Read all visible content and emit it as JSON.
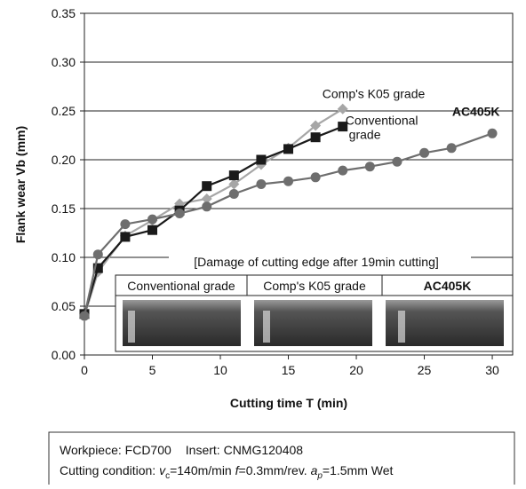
{
  "chart_data": {
    "type": "line",
    "xlabel": "Cutting time T (min)",
    "ylabel": "Flank wear Vb (mm)",
    "xlim": [
      0,
      31.5
    ],
    "xticks": [
      0,
      5,
      10,
      15,
      20,
      25,
      30
    ],
    "ylim": [
      0,
      0.35
    ],
    "yticks": [
      {
        "value": 0,
        "label": "0.00"
      },
      0.05,
      {
        "value": 0.1,
        "label": "0.10"
      },
      0.15,
      {
        "value": 0.2,
        "label": "0.20"
      },
      0.25,
      {
        "value": 0.3,
        "label": "0.30"
      },
      0.35
    ],
    "grid": true,
    "series": [
      {
        "name": "Comp's K05 grade",
        "color": "#a6a6a6",
        "marker": "diamond",
        "x": [
          0,
          1,
          3,
          5,
          7,
          9,
          11,
          13,
          15,
          17,
          19
        ],
        "values": [
          0.04,
          0.085,
          0.122,
          0.138,
          0.155,
          0.16,
          0.175,
          0.195,
          0.212,
          0.235,
          0.252
        ]
      },
      {
        "name": "Conventional grade",
        "color": "#1a1a1a",
        "marker": "square",
        "x": [
          0,
          1,
          3,
          5,
          7,
          9,
          11,
          13,
          15,
          17,
          19
        ],
        "values": [
          0.042,
          0.089,
          0.121,
          0.128,
          0.148,
          0.173,
          0.184,
          0.2,
          0.211,
          0.223,
          0.234
        ]
      },
      {
        "name": "AC405K",
        "color": "#6e6e6e",
        "marker": "circle",
        "x": [
          0,
          1,
          3,
          5,
          7,
          9,
          11,
          13,
          15,
          17,
          19,
          21,
          23,
          25,
          27,
          30
        ],
        "values": [
          0.04,
          0.103,
          0.134,
          0.139,
          0.145,
          0.152,
          0.165,
          0.175,
          0.178,
          0.182,
          0.189,
          0.193,
          0.198,
          0.207,
          0.212,
          0.227
        ]
      }
    ],
    "inset": {
      "caption": "[Damage of cutting edge after 19min cutting]",
      "headers": [
        "Conventional grade",
        "Comp's K05 grade",
        "AC405K"
      ]
    }
  },
  "conditions": {
    "line1": [
      "Workpiece: FCD700",
      "Insert: CNMG120408"
    ],
    "line2": [
      "Cutting condition: ",
      "v",
      "c",
      "=140m/min ",
      "f",
      "=0.3mm/rev. ",
      "a",
      "p",
      "=1.5mm Wet"
    ]
  }
}
